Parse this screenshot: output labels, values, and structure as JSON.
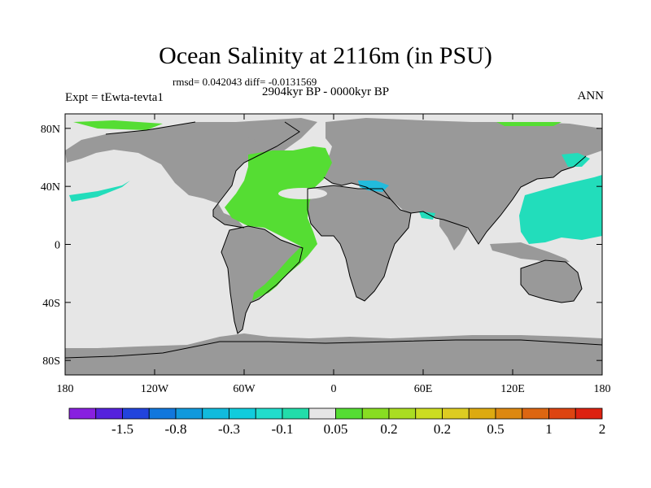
{
  "title": "Ocean Salinity at 2116m (in PSU)",
  "subtitle_stats": "rmsd= 0.042043 diff= -0.0131569",
  "subtitle_period": "2904kyr BP - 0000kyr BP",
  "left_label": "Expt = tEwta-tevta1",
  "right_label": "ANN",
  "map": {
    "lon_range": [
      -180,
      180
    ],
    "lat_range": [
      -90,
      90
    ],
    "lat_ticks": [
      {
        "value": 80,
        "label": "80N"
      },
      {
        "value": 40,
        "label": "40N"
      },
      {
        "value": 0,
        "label": "0"
      },
      {
        "value": -40,
        "label": "40S"
      },
      {
        "value": -80,
        "label": "80S"
      }
    ],
    "lon_ticks": [
      {
        "value": -180,
        "label": "180"
      },
      {
        "value": -120,
        "label": "120W"
      },
      {
        "value": -60,
        "label": "60W"
      },
      {
        "value": 0,
        "label": "0"
      },
      {
        "value": 60,
        "label": "60E"
      },
      {
        "value": 120,
        "label": "120E"
      },
      {
        "value": 180,
        "label": "180"
      }
    ],
    "colors": {
      "ocean_neutral": "#e6e6e6",
      "land": "#999999",
      "green": "#55dd33",
      "teal": "#22dfbb",
      "cyan": "#22bbdd"
    }
  },
  "colorbar": {
    "colors": [
      "#8820e0",
      "#5522dd",
      "#2244dd",
      "#1177dd",
      "#1199dd",
      "#11bbdd",
      "#11ccdd",
      "#22ddcc",
      "#22ddaa",
      "#e6e6e6",
      "#55dd33",
      "#88dd22",
      "#aadd22",
      "#ccdd22",
      "#ddcc22",
      "#ddaa11",
      "#dd8811",
      "#dd6611",
      "#dd4411",
      "#dd2211"
    ],
    "labels": [
      {
        "after_box": 3,
        "text": "-1.5"
      },
      {
        "after_box": 6,
        "text": "-0.8"
      },
      {
        "after_box": 9,
        "text": "-0.3"
      },
      {
        "after_box": 12,
        "text": "-0.1"
      },
      {
        "after_box": 15,
        "text": "0.05"
      },
      {
        "after_box": 18,
        "text": "0.2"
      },
      {
        "after_box": 21,
        "text": "0.2"
      },
      {
        "after_box": 24,
        "text": "0.5"
      },
      {
        "after_box": 27,
        "text": "1"
      },
      {
        "after_box": 30,
        "text": "2"
      }
    ]
  }
}
